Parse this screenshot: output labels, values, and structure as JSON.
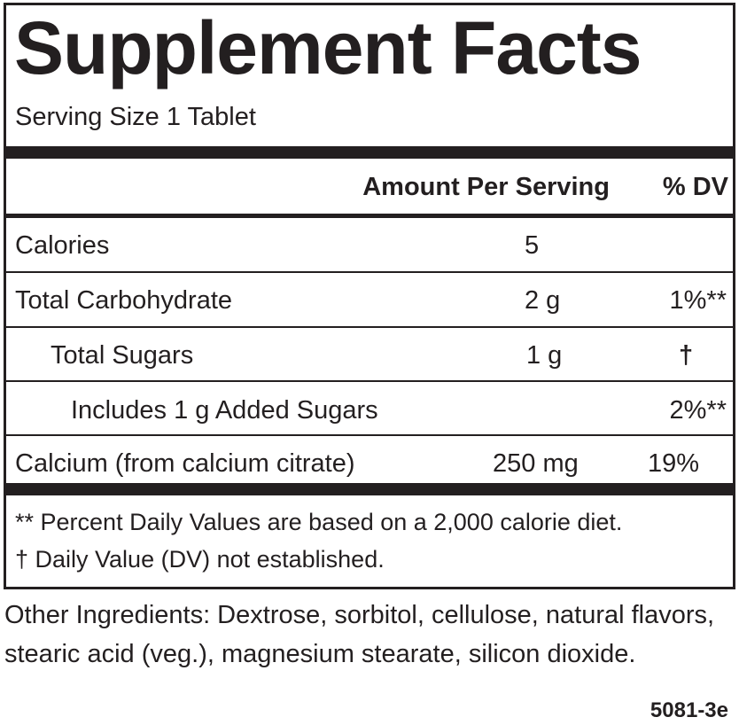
{
  "title": "Supplement Facts",
  "serving_size": "Serving Size 1 Tablet",
  "header": {
    "amount": "Amount Per Serving",
    "dv": "% DV"
  },
  "rows": [
    {
      "name": "Calories",
      "amount": "5",
      "dv": ""
    },
    {
      "name": "Total Carbohydrate",
      "amount": "2 g",
      "dv": "1%**"
    },
    {
      "name": "Total Sugars",
      "amount": "1 g",
      "dv": "†"
    },
    {
      "name": "Includes 1 g Added Sugars",
      "amount": "",
      "dv": "2%**"
    },
    {
      "name": "Calcium (from calcium citrate)",
      "amount": "250 mg",
      "dv": "19%"
    }
  ],
  "footnotes": [
    "** Percent Daily Values are based on a 2,000 calorie diet.",
    "† Daily Value (DV) not established."
  ],
  "other_ingredients": "Other Ingredients: Dextrose, sorbitol, cellulose, natural flavors, stearic acid (veg.), magnesium stearate, silicon dioxide.",
  "product_code": "5081-3e"
}
